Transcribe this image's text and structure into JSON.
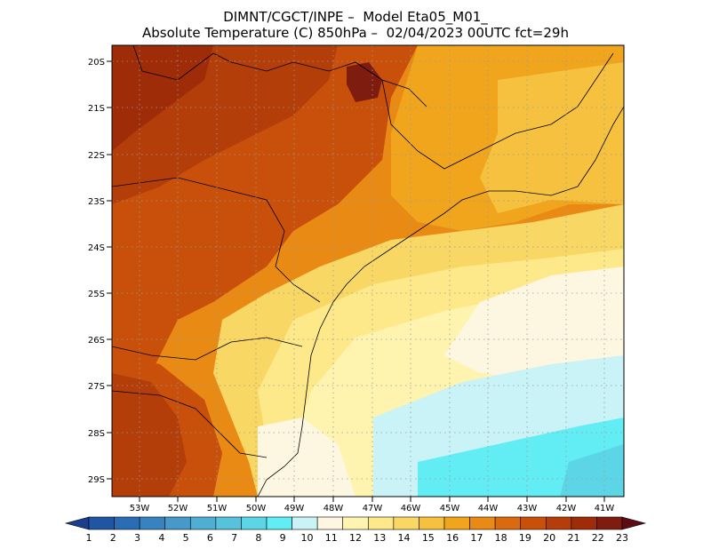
{
  "title": {
    "line1": "DIMNT/CGCT/INPE –  Model Eta05_M01_",
    "line2": "Absolute Temperature (C) 850hPa –  02/04/2023 00UTC fct=29h"
  },
  "axes": {
    "lat_labels": [
      "20S",
      "21S",
      "22S",
      "23S",
      "24S",
      "25S",
      "26S",
      "27S",
      "28S",
      "29S"
    ],
    "lon_labels": [
      "53W",
      "52W",
      "51W",
      "50W",
      "49W",
      "48W",
      "47W",
      "46W",
      "45W",
      "44W",
      "43W",
      "42W",
      "41W"
    ]
  },
  "colorbar": {
    "labels": [
      "1",
      "2",
      "3",
      "4",
      "5",
      "6",
      "7",
      "8",
      "9",
      "10",
      "11",
      "12",
      "13",
      "14",
      "15",
      "16",
      "17",
      "18",
      "19",
      "20",
      "21",
      "22",
      "23"
    ],
    "colors": [
      "#1b3f8f",
      "#1f55a3",
      "#2a6db5",
      "#3683c0",
      "#4699c9",
      "#4fafd3",
      "#56c2dc",
      "#5cd6e6",
      "#62ecf3",
      "#c9f3f7",
      "#fdf6e1",
      "#fff3b0",
      "#fde88a",
      "#f9d764",
      "#f5c13e",
      "#f1a51c",
      "#e98a14",
      "#da6a0e",
      "#c8500b",
      "#b33e09",
      "#9e2c08",
      "#7f1c10",
      "#5c0d14"
    ]
  }
}
